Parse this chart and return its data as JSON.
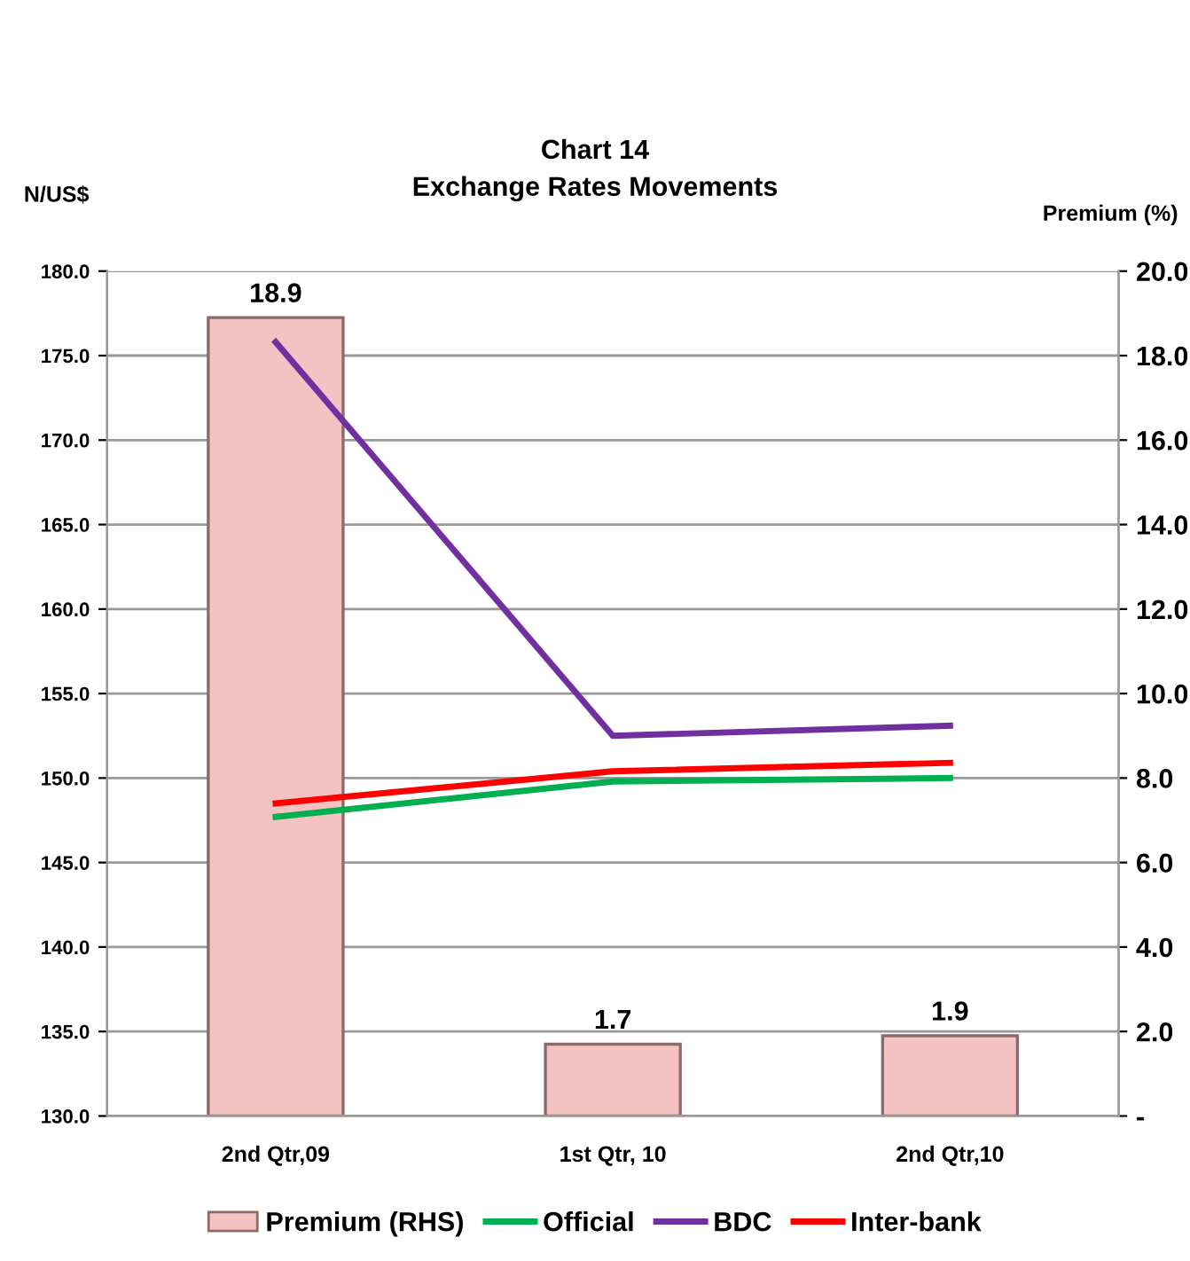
{
  "chart_data": {
    "type": "bar",
    "title": "Chart 14\nExchange Rates Movements",
    "ylabel": "N/US$",
    "y2label": "Premium (%)",
    "categories": [
      "2nd Qtr,09",
      "1st Qtr, 10",
      "2nd Qtr,10"
    ],
    "series": [
      {
        "name": "Premium (RHS)",
        "axis": "y2",
        "color": "#f4c2c2",
        "values": [
          18.9,
          1.7,
          1.9
        ],
        "value_labels": [
          "18.9",
          "1.7",
          "1.9"
        ]
      },
      {
        "name": "Official",
        "type": "line",
        "color": "#00b050",
        "values": [
          147.7,
          149.8,
          150.0
        ]
      },
      {
        "name": "BDC",
        "type": "line",
        "color": "#7030a0",
        "values": [
          175.8,
          152.5,
          153.1
        ]
      },
      {
        "name": "Inter-bank",
        "type": "line",
        "color": "#ff0000",
        "values": [
          148.5,
          150.4,
          150.9
        ]
      }
    ],
    "ylim": [
      130,
      180
    ],
    "yticks": [
      {
        "value": 130,
        "label": "130.0"
      },
      {
        "value": 135,
        "label": "135.0"
      },
      {
        "value": 140,
        "label": "140.0"
      },
      {
        "value": 145,
        "label": "145.0"
      },
      {
        "value": 150,
        "label": "150.0"
      },
      {
        "value": 155,
        "label": "155.0"
      },
      {
        "value": 160,
        "label": "160.0"
      },
      {
        "value": 165,
        "label": "165.0"
      },
      {
        "value": 170,
        "label": "170.0"
      },
      {
        "value": 175,
        "label": "175.0"
      },
      {
        "value": 180,
        "label": "180.0"
      }
    ],
    "y2lim": [
      0,
      20
    ],
    "y2ticks": [
      {
        "value": 0,
        "label": "-"
      },
      {
        "value": 2,
        "label": "2.0"
      },
      {
        "value": 4,
        "label": "4.0"
      },
      {
        "value": 6,
        "label": "6.0"
      },
      {
        "value": 8,
        "label": "8.0"
      },
      {
        "value": 10,
        "label": "10.0"
      },
      {
        "value": 12,
        "label": "12.0"
      },
      {
        "value": 14,
        "label": "14.0"
      },
      {
        "value": 16,
        "label": "16.0"
      },
      {
        "value": 18,
        "label": "18.0"
      },
      {
        "value": 20,
        "label": "20.0"
      }
    ],
    "grid": "y",
    "legend": "bottom"
  }
}
